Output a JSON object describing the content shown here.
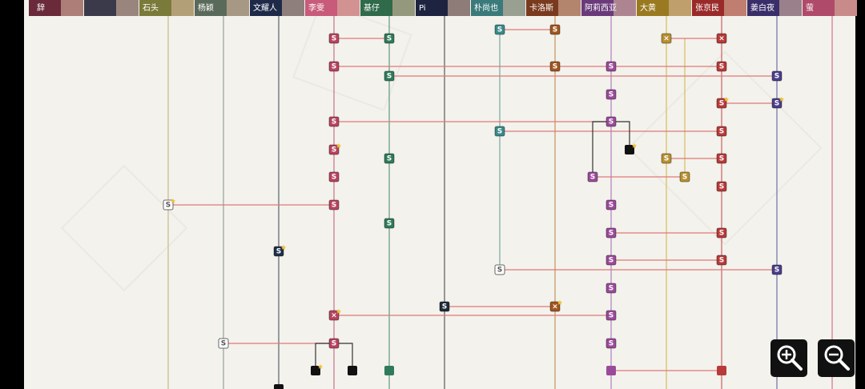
{
  "tabs": [
    "辞",
    "石头",
    "杨颖",
    "文耀人",
    "李雯",
    "基仔",
    "Pi",
    "朴尚也",
    "卡洛斯",
    "阿莉西亚",
    "大黄",
    "张京民",
    "姜白夜",
    "萤"
  ],
  "nodes": [
    "S",
    "S",
    "S",
    "S",
    "×",
    "×",
    "S",
    "S",
    "S",
    "S",
    "S",
    "S",
    "S",
    "S",
    "S",
    "S",
    "S",
    "S",
    "S",
    "S",
    "S",
    "S",
    "S",
    "S",
    "S",
    "S",
    "S",
    "S",
    "S",
    "S",
    "S",
    "S",
    "S",
    "S",
    "S",
    "S",
    "S",
    "S",
    "S",
    "S",
    "×",
    "×",
    "S",
    "S",
    "S",
    "S"
  ]
}
